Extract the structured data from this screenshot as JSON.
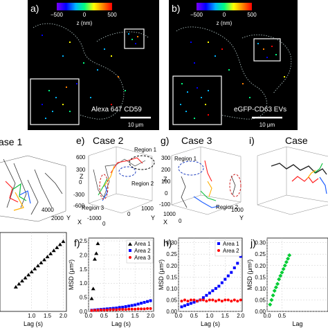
{
  "colors": {
    "cbar": [
      "#7a00ff",
      "#0000ff",
      "#00b4ff",
      "#00ff80",
      "#ffff00",
      "#ff8000",
      "#ff0000"
    ],
    "area1": "#0000ff",
    "area2": "#ff0000",
    "area3": "#00cc33",
    "tri": "#000000"
  },
  "top": {
    "a": {
      "label": "a)",
      "colorbar_ticks": [
        "−500",
        "0",
        "500"
      ],
      "colorbar_title": "z (nm)",
      "caption": "Alexa 647 CD59",
      "scalebar": "10 μm"
    },
    "b": {
      "label": "b)",
      "colorbar_ticks": [
        "−500",
        "0",
        "500"
      ],
      "colorbar_title": "z (nm)",
      "caption": "eGFP-CD63 EVs",
      "scalebar": "10 μm"
    }
  },
  "mid": {
    "d": {
      "label": "",
      "title": "ase 1",
      "axis_label": "Y",
      "ticks": [
        "4000",
        "2000"
      ]
    },
    "e": {
      "label": "e)",
      "title": "Case 2",
      "regions": [
        "Region 1",
        "Region 2",
        "Region 3"
      ],
      "zlabel": "Z",
      "xlabel": "X",
      "ylabel": "Y",
      "zticks": [
        "600",
        "300",
        "0",
        "-300",
        "-600"
      ],
      "xticks": [
        "-1000",
        "0"
      ],
      "yticks": [
        "0",
        "1000"
      ]
    },
    "g": {
      "label": "g)",
      "title": "Case 3",
      "regions": [
        "Region 1",
        "Region 2"
      ],
      "zlabel": "Z",
      "xlabel": "X",
      "ylabel": "Y",
      "zticks": [
        "300",
        "200",
        "100",
        "0",
        "-100"
      ],
      "xticks": [
        "1000",
        "0"
      ],
      "yticks": [
        "1000"
      ]
    },
    "i": {
      "label": "i)",
      "title": "Case"
    }
  },
  "bottom": {
    "f": {
      "label": "f)",
      "ylabel": "MSD (μm²)",
      "xlabel": "Lag (s)",
      "legend": [
        "Area 1",
        "Area 2",
        "Area 3"
      ]
    },
    "h": {
      "label": "h)",
      "ylabel": "MSD (μm²)",
      "xlabel": "Lag (s)",
      "legend": [
        "Area 1",
        "Area 2"
      ]
    },
    "j": {
      "label": "j)",
      "ylabel": "MSD (μm²)",
      "xlabel": "Lag"
    },
    "leftcut": {
      "xlabel": "Lag (s)"
    }
  },
  "chart_data": [
    {
      "type": "scatter",
      "panel": "leftcut",
      "xlabel": "Lag (s)",
      "xlim": [
        0,
        2.1
      ],
      "xticks": [
        "1.0",
        "1.5",
        "2.0"
      ],
      "series": [
        {
          "x": [
            0.5,
            0.6,
            0.7,
            0.8,
            0.9,
            1.0,
            1.1,
            1.2,
            1.3,
            1.4,
            1.5,
            1.6,
            1.7,
            1.8,
            1.9,
            2.0
          ],
          "y": [
            0.8,
            0.9,
            1.0,
            1.1,
            1.2,
            1.3,
            1.4,
            1.5,
            1.6,
            1.7,
            1.8,
            1.9,
            2.0,
            2.1,
            2.2,
            2.3
          ]
        }
      ]
    },
    {
      "type": "scatter",
      "panel": "f",
      "ylabel": "MSD (μm²)",
      "xlabel": "Lag (s)",
      "xlim": [
        0,
        2.1
      ],
      "ylim": [
        0,
        2.6
      ],
      "xticks": [
        "0.0",
        "0.5",
        "1.0",
        "1.5",
        "2.0"
      ],
      "yticks": [
        "0.0",
        "0.5",
        "1.0",
        "1.5",
        "2.0",
        "2.5"
      ],
      "series": [
        {
          "name": "Area 1",
          "marker": "triangle",
          "x": [
            0.1,
            0.15,
            0.2,
            0.25,
            0.3
          ],
          "y": [
            0.45,
            0.8,
            1.85,
            2.05,
            2.4
          ]
        },
        {
          "name": "Area 2",
          "marker": "square",
          "x": [
            0.1,
            0.2,
            0.3,
            0.4,
            0.5,
            0.6,
            0.7,
            0.8,
            0.9,
            1.0,
            1.1,
            1.2,
            1.3,
            1.4,
            1.5,
            1.6,
            1.7,
            1.8,
            1.9,
            2.0
          ],
          "y": [
            0.04,
            0.05,
            0.06,
            0.07,
            0.08,
            0.09,
            0.1,
            0.11,
            0.12,
            0.14,
            0.15,
            0.17,
            0.19,
            0.21,
            0.23,
            0.26,
            0.29,
            0.32,
            0.35,
            0.38
          ]
        },
        {
          "name": "Area 3",
          "marker": "circle",
          "x": [
            0.1,
            0.2,
            0.3,
            0.4,
            0.5,
            0.6,
            0.7,
            0.8,
            0.9,
            1.0,
            1.1,
            1.2,
            1.3,
            1.4,
            1.5,
            1.6,
            1.7,
            1.8,
            1.9,
            2.0
          ],
          "y": [
            0.03,
            0.04,
            0.04,
            0.05,
            0.05,
            0.05,
            0.06,
            0.06,
            0.06,
            0.07,
            0.07,
            0.07,
            0.08,
            0.08,
            0.08,
            0.09,
            0.09,
            0.09,
            0.1,
            0.1
          ]
        }
      ]
    },
    {
      "type": "scatter",
      "panel": "h",
      "ylabel": "MSD (μm²)",
      "xlabel": "Lag (s)",
      "xlim": [
        0,
        2.05
      ],
      "ylim": [
        0,
        0.32
      ],
      "xticks": [
        "0.0",
        "0.5",
        "1.0",
        "1.5",
        "2.0"
      ],
      "yticks": [
        "0.00",
        "0.05",
        "0.10",
        "0.15",
        "0.20",
        "0.25",
        "0.30"
      ],
      "series": [
        {
          "name": "Area 1",
          "marker": "square",
          "x": [
            0.1,
            0.2,
            0.3,
            0.4,
            0.5,
            0.6,
            0.7,
            0.8,
            0.9,
            1.0,
            1.1,
            1.2,
            1.3,
            1.4,
            1.5,
            1.6,
            1.7,
            1.8,
            1.9,
            2.0
          ],
          "y": [
            0.02,
            0.025,
            0.03,
            0.035,
            0.04,
            0.045,
            0.05,
            0.06,
            0.07,
            0.08,
            0.09,
            0.1,
            0.11,
            0.125,
            0.14,
            0.155,
            0.17,
            0.19,
            0.21,
            0.24
          ]
        },
        {
          "name": "Area 2",
          "marker": "circle",
          "x": [
            0.1,
            0.2,
            0.3,
            0.4,
            0.5,
            0.6,
            0.7,
            0.8,
            0.9,
            1.0,
            1.1,
            1.2,
            1.3,
            1.4,
            1.5,
            1.6,
            1.7,
            1.8,
            1.9,
            2.0
          ],
          "y": [
            0.045,
            0.05,
            0.045,
            0.05,
            0.05,
            0.045,
            0.05,
            0.05,
            0.045,
            0.05,
            0.05,
            0.045,
            0.05,
            0.045,
            0.05,
            0.05,
            0.045,
            0.05,
            0.045,
            0.05
          ]
        }
      ]
    },
    {
      "type": "scatter",
      "panel": "j",
      "ylabel": "MSD (μm²)",
      "xlabel": "Lag",
      "xlim": [
        0,
        2.05
      ],
      "ylim": [
        0,
        0.32
      ],
      "xticks": [
        "0.0",
        "0.5"
      ],
      "yticks": [
        "0.00",
        "0.05",
        "0.10",
        "0.15",
        "0.20",
        "0.25",
        "0.30"
      ],
      "series": [
        {
          "marker": "diamond",
          "x": [
            0.1,
            0.15,
            0.2,
            0.25,
            0.3,
            0.35,
            0.4,
            0.45,
            0.5,
            0.55,
            0.6,
            0.65,
            0.7,
            0.75
          ],
          "y": [
            0.03,
            0.05,
            0.07,
            0.09,
            0.105,
            0.12,
            0.14,
            0.155,
            0.17,
            0.185,
            0.2,
            0.215,
            0.23,
            0.245
          ]
        }
      ]
    }
  ]
}
